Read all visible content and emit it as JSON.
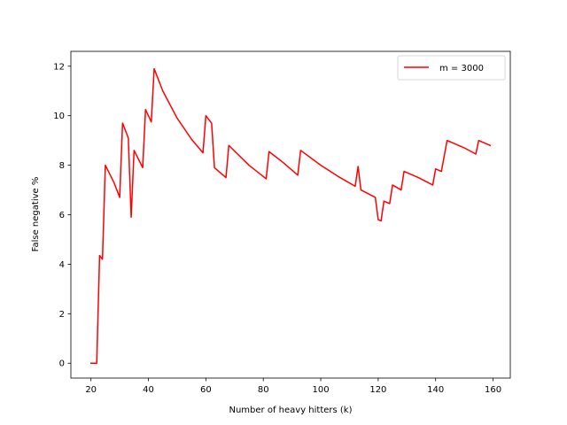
{
  "chart_data": {
    "type": "line",
    "title": "",
    "xlabel": "Number of heavy hitters (k)",
    "ylabel": "False negative %",
    "xlim": [
      13,
      166
    ],
    "ylim": [
      -0.6,
      12.6
    ],
    "xticks": [
      20,
      40,
      60,
      80,
      100,
      120,
      140,
      160
    ],
    "yticks": [
      0,
      2,
      4,
      6,
      8,
      10,
      12
    ],
    "grid": false,
    "legend_position": "top-right",
    "series": [
      {
        "name": "m = 3000",
        "color": "#ff0000",
        "points": [
          [
            20,
            0
          ],
          [
            22,
            0
          ],
          [
            23,
            4.35
          ],
          [
            24,
            4.2
          ],
          [
            25,
            8.0
          ],
          [
            28,
            7.3
          ],
          [
            30,
            6.7
          ],
          [
            31,
            9.7
          ],
          [
            33,
            9.1
          ],
          [
            34,
            5.9
          ],
          [
            35,
            8.6
          ],
          [
            38,
            7.9
          ],
          [
            39,
            10.25
          ],
          [
            41,
            9.75
          ],
          [
            42,
            11.9
          ],
          [
            45,
            11.0
          ],
          [
            50,
            9.9
          ],
          [
            55,
            9.05
          ],
          [
            59,
            8.5
          ],
          [
            60,
            10.0
          ],
          [
            62,
            9.7
          ],
          [
            63,
            7.9
          ],
          [
            67,
            7.5
          ],
          [
            68,
            8.8
          ],
          [
            75,
            8.0
          ],
          [
            81,
            7.45
          ],
          [
            82,
            8.55
          ],
          [
            87,
            8.1
          ],
          [
            92,
            7.6
          ],
          [
            93,
            8.6
          ],
          [
            100,
            8.0
          ],
          [
            106,
            7.55
          ],
          [
            112,
            7.15
          ],
          [
            113,
            7.95
          ],
          [
            114,
            7.0
          ],
          [
            119,
            6.7
          ],
          [
            120,
            5.8
          ],
          [
            121,
            5.75
          ],
          [
            122,
            6.55
          ],
          [
            124,
            6.45
          ],
          [
            125,
            7.2
          ],
          [
            128,
            7.0
          ],
          [
            129,
            7.75
          ],
          [
            134,
            7.5
          ],
          [
            139,
            7.2
          ],
          [
            140,
            7.85
          ],
          [
            142,
            7.75
          ],
          [
            144,
            9.0
          ],
          [
            150,
            8.7
          ],
          [
            154,
            8.45
          ],
          [
            155,
            9.0
          ],
          [
            159,
            8.8
          ]
        ]
      }
    ]
  }
}
